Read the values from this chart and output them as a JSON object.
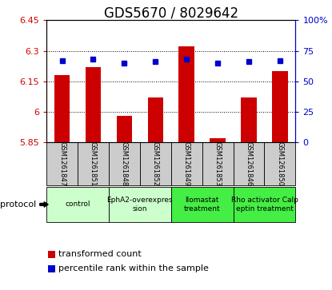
{
  "title": "GDS5670 / 8029642",
  "samples": [
    "GSM1261847",
    "GSM1261851",
    "GSM1261848",
    "GSM1261852",
    "GSM1261849",
    "GSM1261853",
    "GSM1261846",
    "GSM1261850"
  ],
  "transformed_counts": [
    6.18,
    6.22,
    5.98,
    6.07,
    6.32,
    5.87,
    6.07,
    6.2
  ],
  "percentile_ranks": [
    67,
    68,
    65,
    66,
    68,
    65,
    66,
    67
  ],
  "ylim_left": [
    5.85,
    6.45
  ],
  "ylim_right": [
    0,
    100
  ],
  "yticks_left": [
    5.85,
    6.0,
    6.15,
    6.3,
    6.45
  ],
  "ytick_labels_left": [
    "5.85",
    "6",
    "6.15",
    "6.3",
    "6.45"
  ],
  "yticks_right": [
    0,
    25,
    50,
    75,
    100
  ],
  "ytick_labels_right": [
    "0",
    "25",
    "50",
    "75",
    "100%"
  ],
  "protocols": [
    {
      "label": "control",
      "indices": [
        0,
        1
      ],
      "color": "#ccffcc"
    },
    {
      "label": "EphA2-overexpres\nsion",
      "indices": [
        2,
        3
      ],
      "color": "#ccffcc"
    },
    {
      "label": "Ilomastat\ntreatment",
      "indices": [
        4,
        5
      ],
      "color": "#44ee44"
    },
    {
      "label": "Rho activator Calp\neptin treatment",
      "indices": [
        6,
        7
      ],
      "color": "#44ee44"
    }
  ],
  "bar_color": "#cc0000",
  "dot_color": "#0000cc",
  "bar_width": 0.5,
  "baseline": 5.85,
  "left_axis_color": "#cc0000",
  "right_axis_color": "#0000cc",
  "grid_color": "black",
  "sample_box_color": "#cccccc",
  "protocol_label": "protocol",
  "legend_items": [
    {
      "color": "#cc0000",
      "marker": "s",
      "label": "transformed count"
    },
    {
      "color": "#0000cc",
      "marker": "s",
      "label": "percentile rank within the sample"
    }
  ],
  "title_fontsize": 12,
  "tick_fontsize": 8,
  "sample_fontsize": 6,
  "protocol_fontsize": 8,
  "legend_fontsize": 8
}
